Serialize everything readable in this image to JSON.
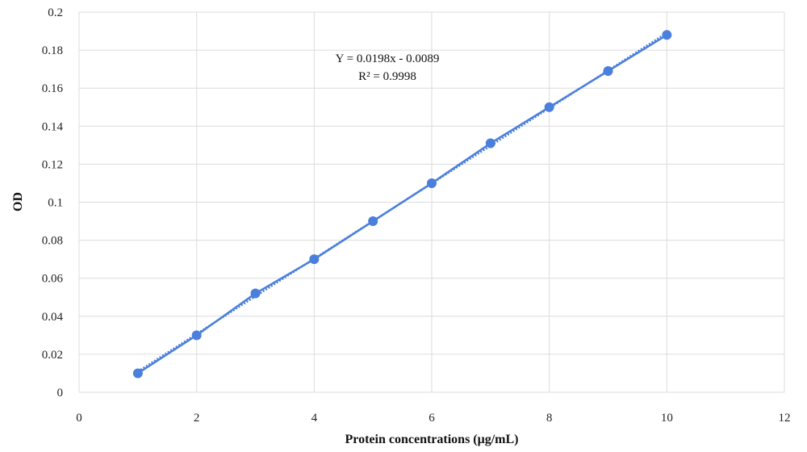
{
  "chart_data": {
    "type": "scatter",
    "title": "",
    "xlabel": "Protein concentrations (μg/mL)",
    "ylabel": "OD",
    "xlim": [
      0,
      12
    ],
    "ylim": [
      0,
      0.2
    ],
    "x_ticks": [
      "0",
      "2",
      "4",
      "6",
      "8",
      "10",
      "12"
    ],
    "y_ticks": [
      "0",
      "0.02",
      "0.04",
      "0.06",
      "0.08",
      "0.1",
      "0.12",
      "0.14",
      "0.16",
      "0.18",
      "0.2"
    ],
    "grid": true,
    "series": [
      {
        "x": [
          1,
          2,
          3,
          4,
          5,
          6,
          7,
          8,
          9,
          10
        ],
        "y": [
          0.01,
          0.03,
          0.052,
          0.07,
          0.09,
          0.11,
          0.131,
          0.15,
          0.169,
          0.188
        ],
        "color": "#4a7fdc",
        "marker": "circle",
        "connected": true
      }
    ],
    "trendline": {
      "type": "linear",
      "slope": 0.0198,
      "intercept": -0.0089,
      "style": "dotted",
      "color": "#4a7fdc"
    },
    "annotations": [
      "Y = 0.0198x - 0.0089",
      "R² = 0.9998"
    ]
  }
}
